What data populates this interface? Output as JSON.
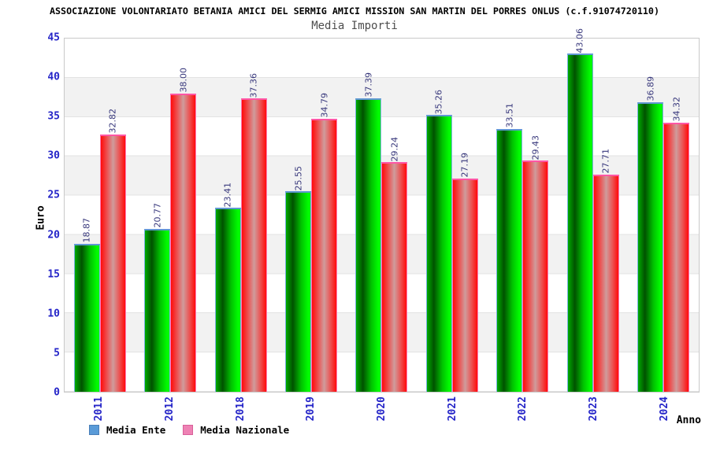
{
  "title": "ASSOCIAZIONE VOLONTARIATO BETANIA AMICI DEL SERMIG AMICI MISSION SAN MARTIN DEL PORRES ONLUS (c.f.91074720110)",
  "subtitle": "Media Importi",
  "y_axis_title": "Euro",
  "x_axis_title": "Anno",
  "legend": [
    {
      "label": "Media Ente",
      "swatch_fill": "#5a9bd8",
      "swatch_border": "#4a7fb8"
    },
    {
      "label": "Media Nazionale",
      "swatch_fill": "#ee82b4",
      "swatch_border": "#d8609a"
    }
  ],
  "chart_data": {
    "type": "bar",
    "title": "Media Importi",
    "categories": [
      "2011",
      "2012",
      "2018",
      "2019",
      "2020",
      "2021",
      "2022",
      "2023",
      "2024"
    ],
    "series": [
      {
        "name": "Media Ente",
        "color": "#00cc00",
        "values": [
          18.87,
          20.77,
          23.41,
          25.55,
          37.39,
          35.26,
          33.51,
          43.06,
          36.89
        ]
      },
      {
        "name": "Media Nazionale",
        "color": "#ee2222",
        "values": [
          32.82,
          38.0,
          37.36,
          34.79,
          29.24,
          27.19,
          29.43,
          27.71,
          34.32
        ]
      }
    ],
    "xlabel": "Anno",
    "ylabel": "Euro",
    "ylim": [
      0,
      45
    ],
    "ytick_step": 5,
    "grid": true,
    "band_colors": [
      "#ffffff",
      "#f2f2f2"
    ],
    "legend_position": "bottom",
    "value_labels": "rotated, 2 decimals",
    "tick_label_color": "#2424c8",
    "value_label_color": "#38387c"
  }
}
